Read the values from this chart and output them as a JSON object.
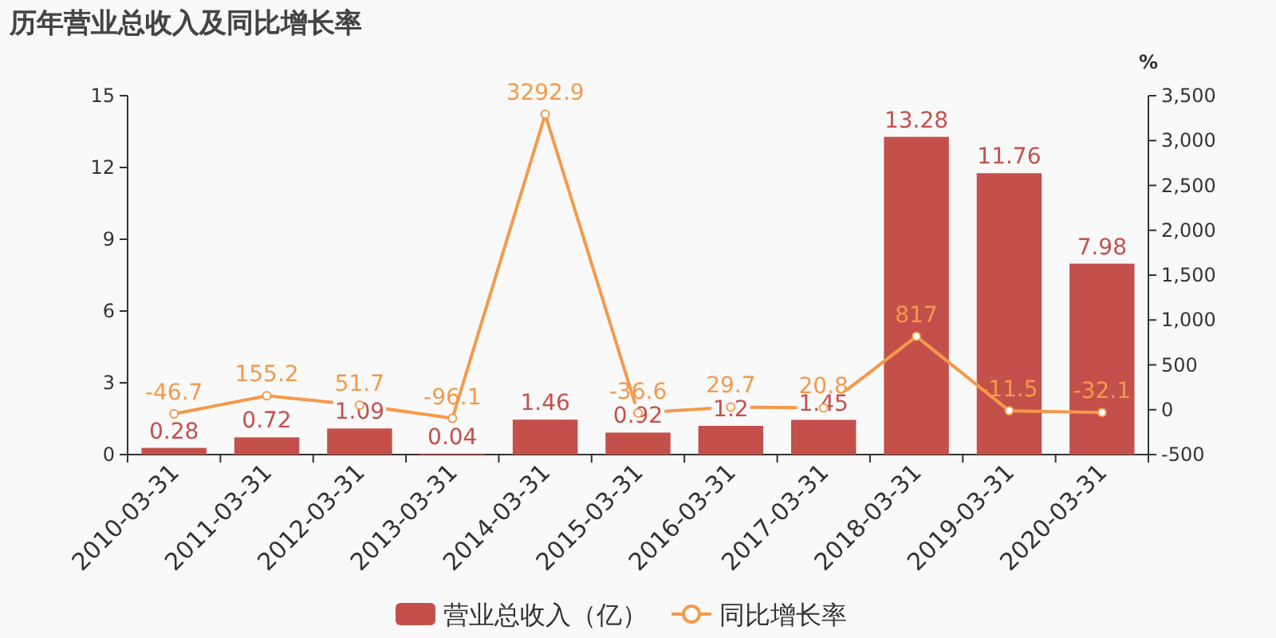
{
  "chart_data": {
    "type": "bar",
    "title": "历年营业总收入及同比增长率",
    "y2label": "%",
    "categories": [
      "2010-03-31",
      "2011-03-31",
      "2012-03-31",
      "2013-03-31",
      "2014-03-31",
      "2015-03-31",
      "2016-03-31",
      "2017-03-31",
      "2018-03-31",
      "2019-03-31",
      "2020-03-31"
    ],
    "series": [
      {
        "name": "营业总收入（亿）",
        "type": "bar",
        "color": "#c4504c",
        "values": [
          0.28,
          0.72,
          1.09,
          0.04,
          1.46,
          0.92,
          1.2,
          1.45,
          13.28,
          11.76,
          7.98
        ]
      },
      {
        "name": "同比增长率",
        "type": "line",
        "axis": "y2",
        "color": "#f5994a",
        "values": [
          -46.7,
          155.2,
          51.7,
          -96.1,
          3292.9,
          -36.6,
          29.7,
          20.8,
          817,
          -11.5,
          -32.1
        ]
      }
    ],
    "ylim": [
      0,
      15
    ],
    "yticks": [
      0,
      3,
      6,
      9,
      12,
      15
    ],
    "y2lim": [
      -500,
      3500
    ],
    "y2ticks": [
      {
        "value": -500,
        "label": "-500"
      },
      0,
      500,
      {
        "value": 1000,
        "label": "1,000"
      },
      {
        "value": 1500,
        "label": "1,500"
      },
      {
        "value": 2000,
        "label": "2,000"
      },
      {
        "value": 2500,
        "label": "2,500"
      },
      {
        "value": 3000,
        "label": "3,000"
      },
      {
        "value": 3500,
        "label": "3,500"
      }
    ],
    "marker": "circle",
    "data_labels": true,
    "legend": "bottom",
    "grid": false
  }
}
